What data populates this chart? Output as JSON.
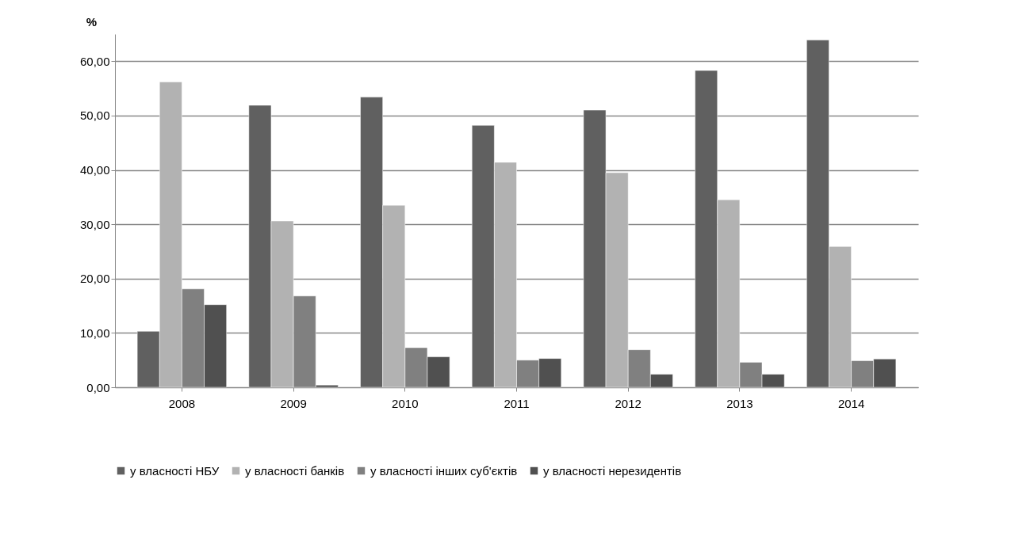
{
  "chart_data": {
    "type": "bar",
    "ylabel": "%",
    "categories": [
      "2008",
      "2009",
      "2010",
      "2011",
      "2012",
      "2013",
      "2014"
    ],
    "series": [
      {
        "name": "у власності НБУ",
        "color": "#606060",
        "values": [
          10.3,
          51.9,
          53.4,
          48.2,
          51.0,
          58.3,
          63.9
        ]
      },
      {
        "name": "у власності банків",
        "color": "#b2b2b2",
        "values": [
          56.2,
          30.6,
          33.5,
          41.4,
          39.5,
          34.5,
          25.9
        ]
      },
      {
        "name": "у власності інших суб'єктів",
        "color": "#808080",
        "values": [
          18.1,
          16.8,
          7.3,
          5.0,
          6.9,
          4.6,
          4.9
        ]
      },
      {
        "name": "у власності нерезидентів",
        "color": "#505050",
        "values": [
          15.2,
          0.4,
          5.6,
          5.3,
          2.4,
          2.4,
          5.2
        ]
      }
    ],
    "ylim": [
      0,
      65
    ],
    "yticks": [
      {
        "value": 0,
        "label": "0,00"
      },
      {
        "value": 10,
        "label": "10,00"
      },
      {
        "value": 20,
        "label": "20,00"
      },
      {
        "value": 30,
        "label": "30,00"
      },
      {
        "value": 40,
        "label": "40,00"
      },
      {
        "value": 50,
        "label": "50,00"
      },
      {
        "value": 60,
        "label": "60,00"
      }
    ],
    "grid": "y",
    "legend": "bottom"
  }
}
